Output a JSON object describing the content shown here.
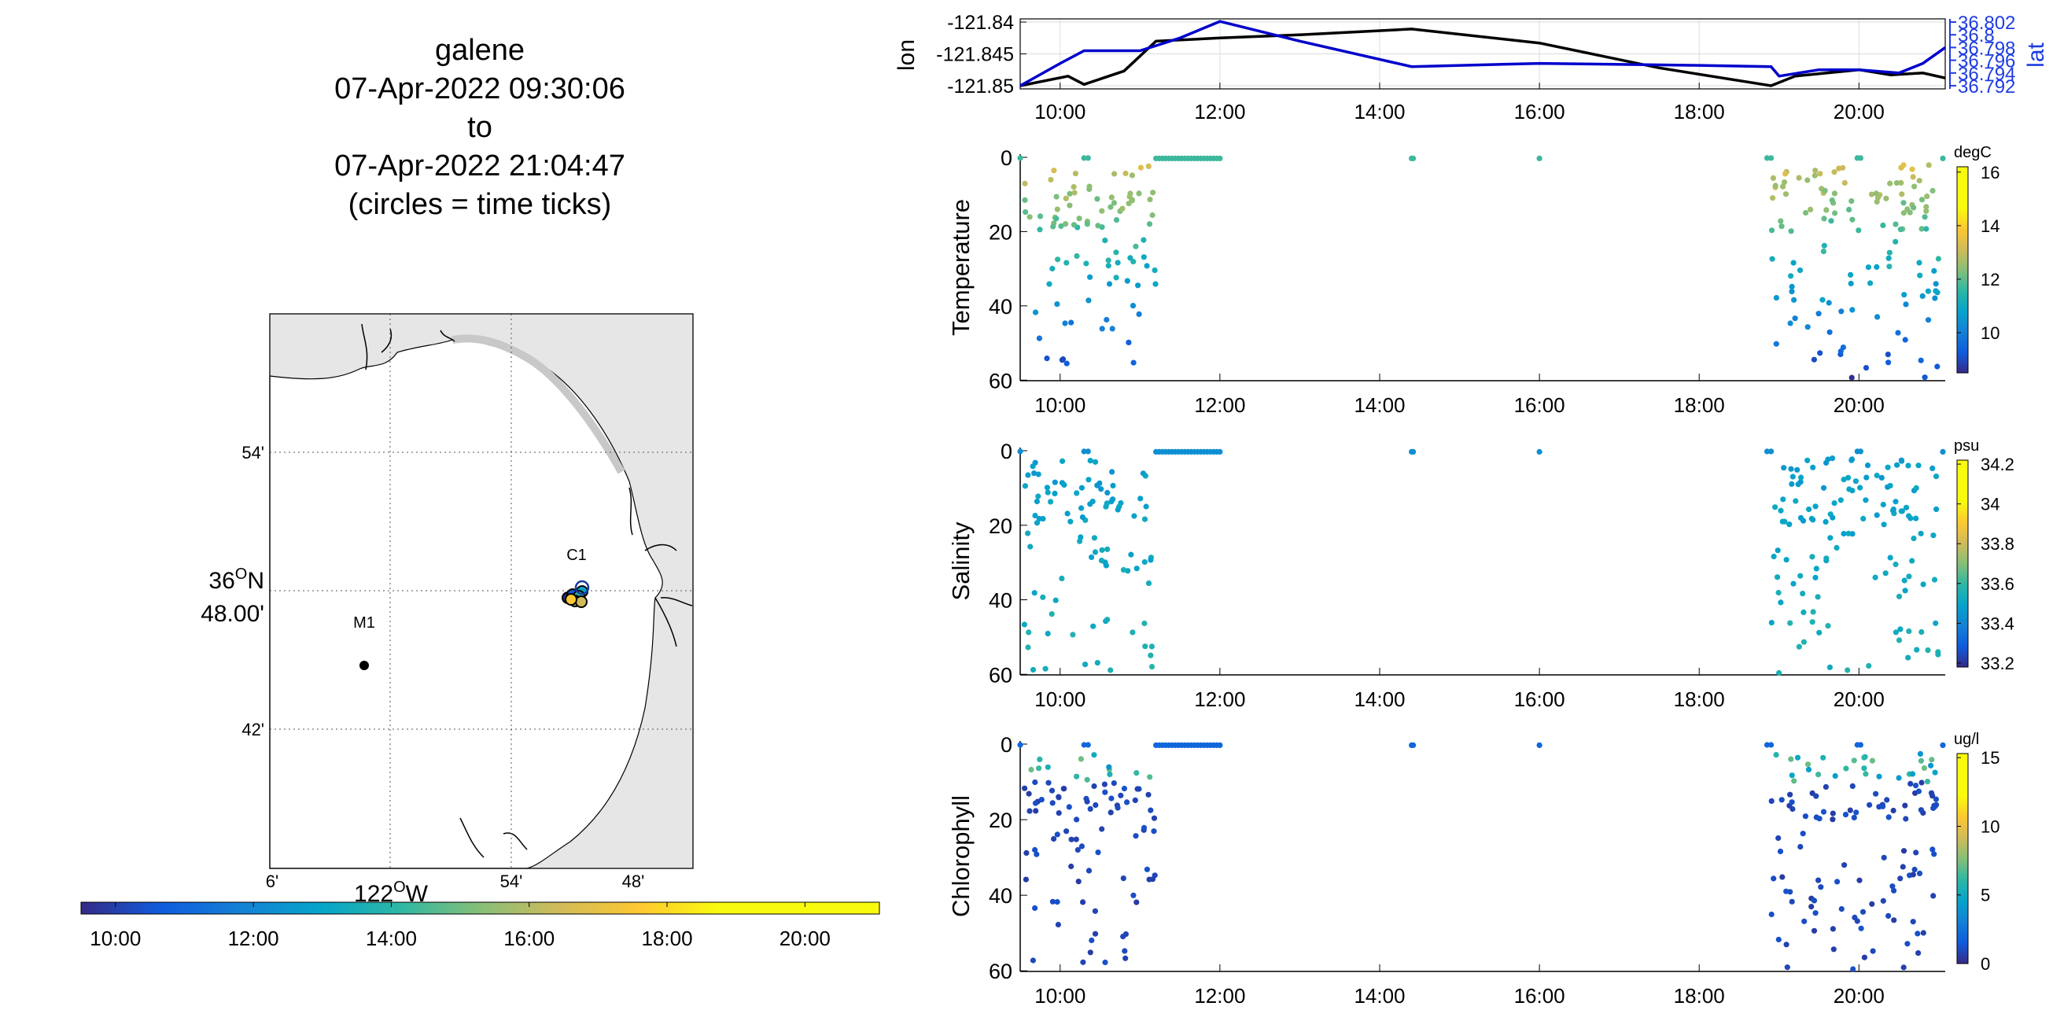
{
  "header": {
    "title_lines": [
      "galene",
      "07-Apr-2022 09:30:06",
      "to",
      "07-Apr-2022 21:04:47",
      "(circles = time ticks)"
    ]
  },
  "map": {
    "lat_ticks": [
      "54'",
      "42'"
    ],
    "lat_center": [
      "36°N",
      "48.00'"
    ],
    "lon_ticks": [
      "6'",
      "54'",
      "48'"
    ],
    "lon_center": "122°W",
    "lon_center_degree_label": "122",
    "lon_center_suffix": "W",
    "lat_degree_label": "36",
    "lat_suffix": "N",
    "stations": [
      {
        "name": "M1",
        "lon": -122.02,
        "lat": 36.747
      },
      {
        "name": "C1",
        "lon": -121.848,
        "lat": 36.797
      }
    ],
    "colorbar_ticks": [
      "10:00",
      "12:00",
      "14:00",
      "16:00",
      "18:00",
      "20:00"
    ]
  },
  "chart_data": [
    {
      "type": "line",
      "title": "",
      "xlabel": "",
      "ylabel_left": "lon",
      "ylabel_right": "lat",
      "x_ticks": [
        "10:00",
        "12:00",
        "14:00",
        "16:00",
        "18:00",
        "20:00"
      ],
      "xlim": [
        9.5,
        21.08
      ],
      "ylim_left": [
        -121.8505,
        -121.8395
      ],
      "ylim_right": [
        36.7915,
        36.8025
      ],
      "y_ticks_left": [
        "-121.84",
        "-121.845",
        "-121.85"
      ],
      "y_ticks_right": [
        "36.802",
        "36.8",
        "36.798",
        "36.796",
        "36.794",
        "36.792"
      ],
      "series": [
        {
          "name": "lon",
          "color": "#000000",
          "axis": "left",
          "x": [
            9.5,
            10.1,
            10.3,
            10.8,
            11.2,
            12.0,
            13.0,
            14.4,
            16.0,
            17.5,
            18.9,
            19.2,
            19.6,
            20.0,
            20.4,
            20.8,
            21.08
          ],
          "y": [
            -121.85,
            -121.8485,
            -121.8498,
            -121.8477,
            -121.843,
            -121.8425,
            -121.842,
            -121.8411,
            -121.8433,
            -121.8472,
            -121.85,
            -121.8485,
            -121.848,
            -121.8475,
            -121.8483,
            -121.848,
            -121.8488
          ]
        },
        {
          "name": "lat",
          "color": "#0000cc",
          "axis": "right",
          "x": [
            9.5,
            10.0,
            10.3,
            11.0,
            11.5,
            12.0,
            13.0,
            14.4,
            16.0,
            18.0,
            18.9,
            19.0,
            19.5,
            20.0,
            20.5,
            20.8,
            21.08
          ],
          "y": [
            36.792,
            36.7955,
            36.7975,
            36.7975,
            36.7995,
            36.8021,
            36.799,
            36.795,
            36.7955,
            36.7952,
            36.795,
            36.7935,
            36.7945,
            36.7945,
            36.794,
            36.7955,
            36.798
          ]
        }
      ]
    },
    {
      "type": "scatter",
      "ylabel": "Temperature",
      "colorbar_unit": "degC",
      "colorbar_ticks": [
        16,
        14,
        12,
        10
      ],
      "clim": [
        8.5,
        16.2
      ],
      "x_ticks": [
        "10:00",
        "12:00",
        "14:00",
        "16:00",
        "18:00",
        "20:00"
      ],
      "y_ticks": [
        0,
        20,
        40,
        60
      ],
      "ylim": [
        0,
        61
      ]
    },
    {
      "type": "scatter",
      "ylabel": "Salinity",
      "colorbar_unit": "psu",
      "colorbar_ticks": [
        34.2,
        34,
        33.8,
        33.6,
        33.4,
        33.2
      ],
      "clim": [
        33.18,
        34.22
      ],
      "x_ticks": [
        "10:00",
        "12:00",
        "14:00",
        "16:00",
        "18:00",
        "20:00"
      ],
      "y_ticks": [
        0,
        20,
        40,
        60
      ],
      "ylim": [
        0,
        61
      ]
    },
    {
      "type": "scatter",
      "ylabel": "Chlorophyll",
      "colorbar_unit": "ug/l",
      "colorbar_ticks": [
        15,
        10,
        5,
        0
      ],
      "clim": [
        0,
        15.3
      ],
      "x_ticks": [
        "10:00",
        "12:00",
        "14:00",
        "16:00",
        "18:00",
        "20:00"
      ],
      "y_ticks": [
        0,
        20,
        40,
        60
      ],
      "ylim": [
        0,
        61
      ]
    }
  ]
}
